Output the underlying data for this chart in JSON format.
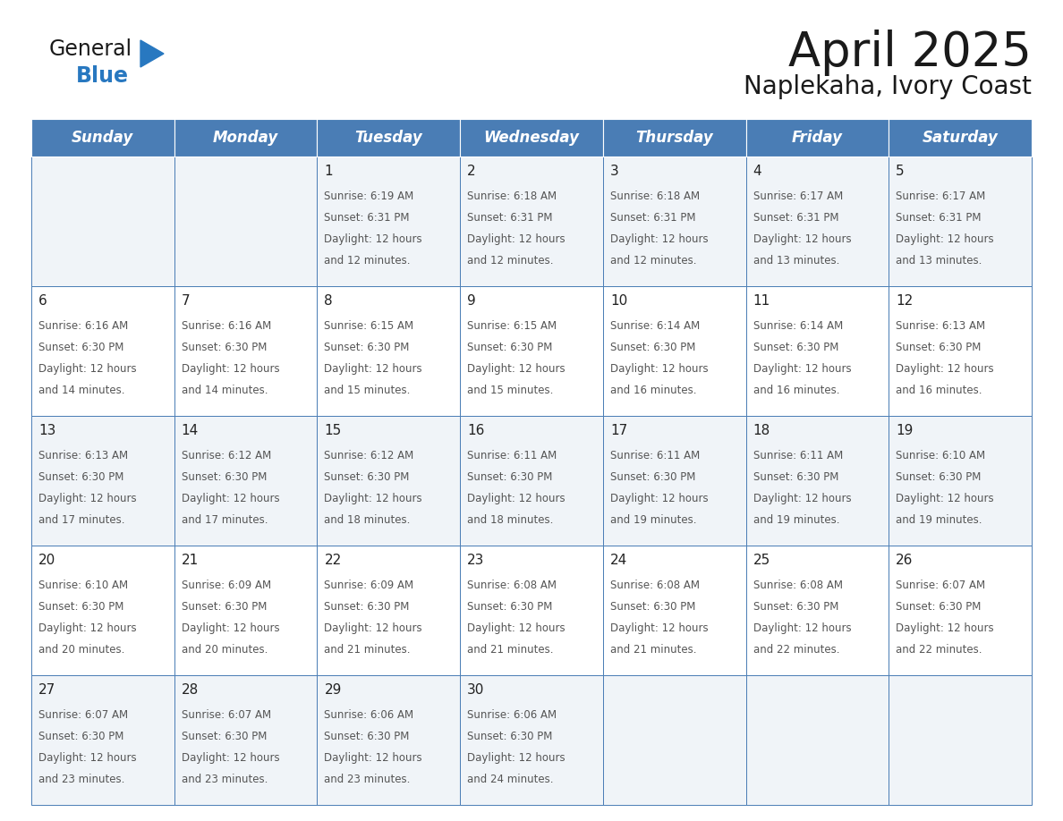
{
  "title": "April 2025",
  "subtitle": "Naplekaha, Ivory Coast",
  "header_color": "#4A7DB5",
  "header_text_color": "#FFFFFF",
  "cell_bg_even": "#F0F4F8",
  "cell_bg_odd": "#FFFFFF",
  "border_color": "#4A7DB5",
  "day_num_color": "#222222",
  "info_text_color": "#555555",
  "days_of_week": [
    "Sunday",
    "Monday",
    "Tuesday",
    "Wednesday",
    "Thursday",
    "Friday",
    "Saturday"
  ],
  "calendar_data": [
    [
      "",
      "",
      "1",
      "2",
      "3",
      "4",
      "5"
    ],
    [
      "6",
      "7",
      "8",
      "9",
      "10",
      "11",
      "12"
    ],
    [
      "13",
      "14",
      "15",
      "16",
      "17",
      "18",
      "19"
    ],
    [
      "20",
      "21",
      "22",
      "23",
      "24",
      "25",
      "26"
    ],
    [
      "27",
      "28",
      "29",
      "30",
      "",
      "",
      ""
    ]
  ],
  "cell_data": {
    "1": {
      "sunrise": "6:19 AM",
      "sunset": "6:31 PM",
      "daylight": "12 hours",
      "daylight2": "and 12 minutes."
    },
    "2": {
      "sunrise": "6:18 AM",
      "sunset": "6:31 PM",
      "daylight": "12 hours",
      "daylight2": "and 12 minutes."
    },
    "3": {
      "sunrise": "6:18 AM",
      "sunset": "6:31 PM",
      "daylight": "12 hours",
      "daylight2": "and 12 minutes."
    },
    "4": {
      "sunrise": "6:17 AM",
      "sunset": "6:31 PM",
      "daylight": "12 hours",
      "daylight2": "and 13 minutes."
    },
    "5": {
      "sunrise": "6:17 AM",
      "sunset": "6:31 PM",
      "daylight": "12 hours",
      "daylight2": "and 13 minutes."
    },
    "6": {
      "sunrise": "6:16 AM",
      "sunset": "6:30 PM",
      "daylight": "12 hours",
      "daylight2": "and 14 minutes."
    },
    "7": {
      "sunrise": "6:16 AM",
      "sunset": "6:30 PM",
      "daylight": "12 hours",
      "daylight2": "and 14 minutes."
    },
    "8": {
      "sunrise": "6:15 AM",
      "sunset": "6:30 PM",
      "daylight": "12 hours",
      "daylight2": "and 15 minutes."
    },
    "9": {
      "sunrise": "6:15 AM",
      "sunset": "6:30 PM",
      "daylight": "12 hours",
      "daylight2": "and 15 minutes."
    },
    "10": {
      "sunrise": "6:14 AM",
      "sunset": "6:30 PM",
      "daylight": "12 hours",
      "daylight2": "and 16 minutes."
    },
    "11": {
      "sunrise": "6:14 AM",
      "sunset": "6:30 PM",
      "daylight": "12 hours",
      "daylight2": "and 16 minutes."
    },
    "12": {
      "sunrise": "6:13 AM",
      "sunset": "6:30 PM",
      "daylight": "12 hours",
      "daylight2": "and 16 minutes."
    },
    "13": {
      "sunrise": "6:13 AM",
      "sunset": "6:30 PM",
      "daylight": "12 hours",
      "daylight2": "and 17 minutes."
    },
    "14": {
      "sunrise": "6:12 AM",
      "sunset": "6:30 PM",
      "daylight": "12 hours",
      "daylight2": "and 17 minutes."
    },
    "15": {
      "sunrise": "6:12 AM",
      "sunset": "6:30 PM",
      "daylight": "12 hours",
      "daylight2": "and 18 minutes."
    },
    "16": {
      "sunrise": "6:11 AM",
      "sunset": "6:30 PM",
      "daylight": "12 hours",
      "daylight2": "and 18 minutes."
    },
    "17": {
      "sunrise": "6:11 AM",
      "sunset": "6:30 PM",
      "daylight": "12 hours",
      "daylight2": "and 19 minutes."
    },
    "18": {
      "sunrise": "6:11 AM",
      "sunset": "6:30 PM",
      "daylight": "12 hours",
      "daylight2": "and 19 minutes."
    },
    "19": {
      "sunrise": "6:10 AM",
      "sunset": "6:30 PM",
      "daylight": "12 hours",
      "daylight2": "and 19 minutes."
    },
    "20": {
      "sunrise": "6:10 AM",
      "sunset": "6:30 PM",
      "daylight": "12 hours",
      "daylight2": "and 20 minutes."
    },
    "21": {
      "sunrise": "6:09 AM",
      "sunset": "6:30 PM",
      "daylight": "12 hours",
      "daylight2": "and 20 minutes."
    },
    "22": {
      "sunrise": "6:09 AM",
      "sunset": "6:30 PM",
      "daylight": "12 hours",
      "daylight2": "and 21 minutes."
    },
    "23": {
      "sunrise": "6:08 AM",
      "sunset": "6:30 PM",
      "daylight": "12 hours",
      "daylight2": "and 21 minutes."
    },
    "24": {
      "sunrise": "6:08 AM",
      "sunset": "6:30 PM",
      "daylight": "12 hours",
      "daylight2": "and 21 minutes."
    },
    "25": {
      "sunrise": "6:08 AM",
      "sunset": "6:30 PM",
      "daylight": "12 hours",
      "daylight2": "and 22 minutes."
    },
    "26": {
      "sunrise": "6:07 AM",
      "sunset": "6:30 PM",
      "daylight": "12 hours",
      "daylight2": "and 22 minutes."
    },
    "27": {
      "sunrise": "6:07 AM",
      "sunset": "6:30 PM",
      "daylight": "12 hours",
      "daylight2": "and 23 minutes."
    },
    "28": {
      "sunrise": "6:07 AM",
      "sunset": "6:30 PM",
      "daylight": "12 hours",
      "daylight2": "and 23 minutes."
    },
    "29": {
      "sunrise": "6:06 AM",
      "sunset": "6:30 PM",
      "daylight": "12 hours",
      "daylight2": "and 23 minutes."
    },
    "30": {
      "sunrise": "6:06 AM",
      "sunset": "6:30 PM",
      "daylight": "12 hours",
      "daylight2": "and 24 minutes."
    }
  },
  "logo_text1": "General",
  "logo_text2": "Blue",
  "logo_color1": "#1a1a1a",
  "logo_color2": "#2878C0",
  "triangle_color": "#2878C0",
  "title_fontsize": 38,
  "subtitle_fontsize": 20,
  "header_fontsize": 12,
  "day_num_fontsize": 11,
  "info_fontsize": 8.5
}
